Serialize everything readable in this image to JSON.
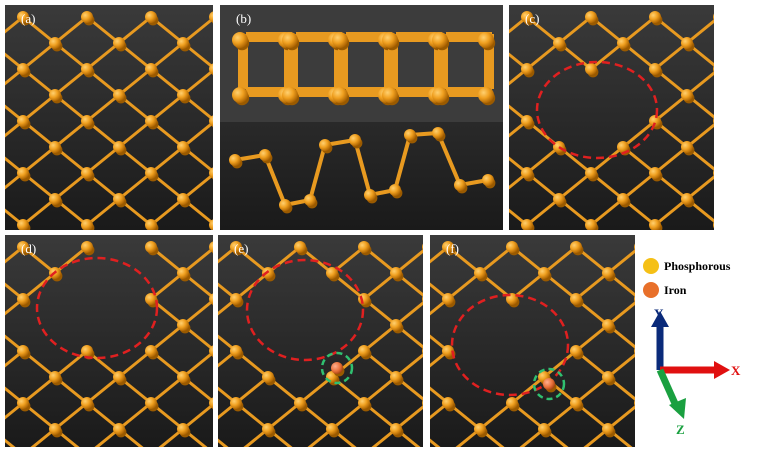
{
  "panels": [
    {
      "label": "(a)"
    },
    {
      "label": "(b)"
    },
    {
      "label": "(c)"
    },
    {
      "label": "(d)"
    },
    {
      "label": "(e)"
    },
    {
      "label": "(f)"
    }
  ],
  "legend": [
    {
      "label": "Phosphorous"
    },
    {
      "label": "Iron"
    }
  ],
  "axes": {
    "y": "Y",
    "x": "X",
    "z": "Z"
  }
}
